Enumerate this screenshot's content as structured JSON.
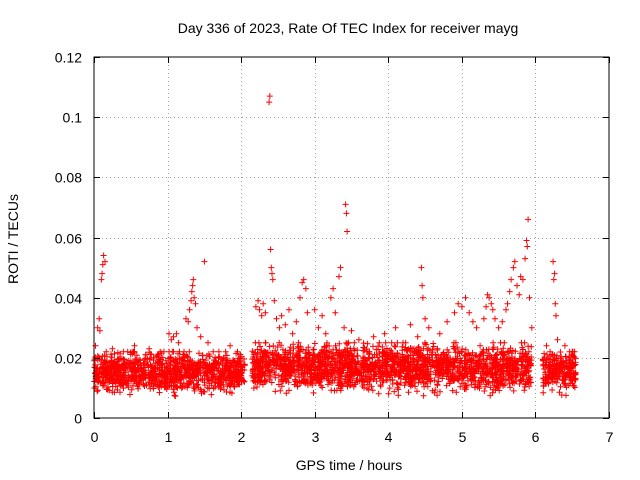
{
  "chart_data": {
    "type": "scatter",
    "title": "Day 336 of 2023, Rate Of TEC Index for receiver mayg",
    "xlabel": "GPS time / hours",
    "ylabel": "ROTI / TECUs",
    "xlim": [
      0,
      7
    ],
    "ylim": [
      0,
      0.12
    ],
    "xticks": [
      0,
      1,
      2,
      3,
      4,
      5,
      6,
      7
    ],
    "xtick_labels": [
      "0",
      "1",
      "2",
      "3",
      "4",
      "5",
      "6",
      "7"
    ],
    "yticks": [
      0,
      0.02,
      0.04,
      0.06,
      0.08,
      0.1,
      0.12
    ],
    "ytick_labels": [
      "0",
      "0.02",
      "0.04",
      "0.06",
      "0.08",
      "0.1",
      "0.12"
    ],
    "grid": true,
    "marker": "plus",
    "color": "#ff0000",
    "dense_bands": [
      {
        "x_start": 0.0,
        "x_end": 2.05,
        "y_low": 0.006,
        "y_high": 0.022
      },
      {
        "x_start": 2.15,
        "x_end": 5.95,
        "y_low": 0.006,
        "y_high": 0.025
      },
      {
        "x_start": 6.1,
        "x_end": 6.55,
        "y_low": 0.007,
        "y_high": 0.022
      }
    ],
    "points": [
      [
        0.02,
        0.024
      ],
      [
        0.05,
        0.03
      ],
      [
        0.07,
        0.033
      ],
      [
        0.08,
        0.029
      ],
      [
        0.1,
        0.046
      ],
      [
        0.11,
        0.048
      ],
      [
        0.12,
        0.051
      ],
      [
        0.13,
        0.054
      ],
      [
        0.15,
        0.052
      ],
      [
        0.25,
        0.023
      ],
      [
        0.4,
        0.022
      ],
      [
        0.55,
        0.024
      ],
      [
        0.75,
        0.023
      ],
      [
        0.9,
        0.022
      ],
      [
        1.02,
        0.028
      ],
      [
        1.05,
        0.026
      ],
      [
        1.08,
        0.027
      ],
      [
        1.12,
        0.028
      ],
      [
        1.15,
        0.025
      ],
      [
        1.25,
        0.033
      ],
      [
        1.28,
        0.032
      ],
      [
        1.3,
        0.036
      ],
      [
        1.32,
        0.039
      ],
      [
        1.33,
        0.042
      ],
      [
        1.34,
        0.044
      ],
      [
        1.35,
        0.046
      ],
      [
        1.36,
        0.04
      ],
      [
        1.38,
        0.038
      ],
      [
        1.4,
        0.03
      ],
      [
        1.45,
        0.027
      ],
      [
        1.5,
        0.052
      ],
      [
        1.55,
        0.025
      ],
      [
        1.85,
        0.024
      ],
      [
        1.95,
        0.022
      ],
      [
        2.2,
        0.037
      ],
      [
        2.23,
        0.039
      ],
      [
        2.25,
        0.036
      ],
      [
        2.28,
        0.034
      ],
      [
        2.3,
        0.038
      ],
      [
        2.33,
        0.035
      ],
      [
        2.38,
        0.105
      ],
      [
        2.39,
        0.107
      ],
      [
        2.4,
        0.056
      ],
      [
        2.41,
        0.05
      ],
      [
        2.42,
        0.048
      ],
      [
        2.43,
        0.046
      ],
      [
        2.45,
        0.039
      ],
      [
        2.48,
        0.033
      ],
      [
        2.52,
        0.03
      ],
      [
        2.55,
        0.034
      ],
      [
        2.6,
        0.031
      ],
      [
        2.65,
        0.036
      ],
      [
        2.7,
        0.028
      ],
      [
        2.75,
        0.032
      ],
      [
        2.8,
        0.04
      ],
      [
        2.83,
        0.045
      ],
      [
        2.85,
        0.046
      ],
      [
        2.88,
        0.043
      ],
      [
        2.9,
        0.035
      ],
      [
        3.0,
        0.036
      ],
      [
        3.05,
        0.03
      ],
      [
        3.1,
        0.034
      ],
      [
        3.15,
        0.028
      ],
      [
        3.22,
        0.04
      ],
      [
        3.25,
        0.043
      ],
      [
        3.28,
        0.035
      ],
      [
        3.33,
        0.047
      ],
      [
        3.35,
        0.05
      ],
      [
        3.4,
        0.03
      ],
      [
        3.42,
        0.071
      ],
      [
        3.43,
        0.068
      ],
      [
        3.44,
        0.062
      ],
      [
        3.5,
        0.029
      ],
      [
        3.6,
        0.026
      ],
      [
        3.8,
        0.027
      ],
      [
        3.95,
        0.028
      ],
      [
        4.1,
        0.03
      ],
      [
        4.2,
        0.025
      ],
      [
        4.3,
        0.031
      ],
      [
        4.4,
        0.027
      ],
      [
        4.45,
        0.05
      ],
      [
        4.46,
        0.044
      ],
      [
        4.47,
        0.04
      ],
      [
        4.5,
        0.033
      ],
      [
        4.55,
        0.03
      ],
      [
        4.7,
        0.028
      ],
      [
        4.8,
        0.032
      ],
      [
        4.9,
        0.035
      ],
      [
        4.95,
        0.038
      ],
      [
        5.0,
        0.037
      ],
      [
        5.05,
        0.04
      ],
      [
        5.1,
        0.035
      ],
      [
        5.15,
        0.032
      ],
      [
        5.2,
        0.03
      ],
      [
        5.3,
        0.033
      ],
      [
        5.33,
        0.037
      ],
      [
        5.35,
        0.041
      ],
      [
        5.37,
        0.04
      ],
      [
        5.4,
        0.038
      ],
      [
        5.42,
        0.036
      ],
      [
        5.45,
        0.033
      ],
      [
        5.5,
        0.03
      ],
      [
        5.55,
        0.032
      ],
      [
        5.6,
        0.036
      ],
      [
        5.62,
        0.038
      ],
      [
        5.65,
        0.042
      ],
      [
        5.67,
        0.046
      ],
      [
        5.7,
        0.05
      ],
      [
        5.72,
        0.052
      ],
      [
        5.75,
        0.044
      ],
      [
        5.78,
        0.041
      ],
      [
        5.8,
        0.047
      ],
      [
        5.83,
        0.046
      ],
      [
        5.86,
        0.053
      ],
      [
        5.88,
        0.059
      ],
      [
        5.89,
        0.057
      ],
      [
        5.9,
        0.066
      ],
      [
        5.92,
        0.04
      ],
      [
        5.95,
        0.03
      ],
      [
        6.15,
        0.024
      ],
      [
        6.2,
        0.022
      ],
      [
        6.24,
        0.052
      ],
      [
        6.25,
        0.046
      ],
      [
        6.26,
        0.048
      ],
      [
        6.27,
        0.038
      ],
      [
        6.28,
        0.034
      ],
      [
        6.3,
        0.026
      ],
      [
        6.4,
        0.024
      ],
      [
        6.5,
        0.022
      ]
    ]
  }
}
